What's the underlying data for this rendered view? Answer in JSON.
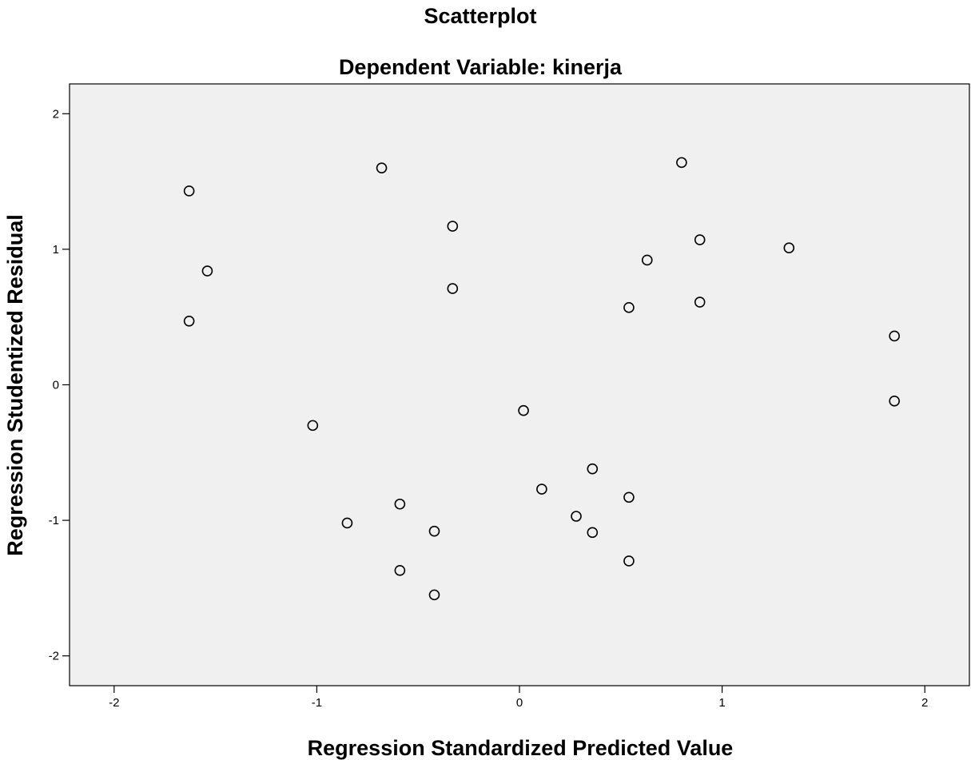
{
  "chart_data": {
    "type": "scatter",
    "title": "Scatterplot",
    "subtitle": "Dependent Variable: kinerja",
    "xlabel": "Regression Standardized Predicted Value",
    "ylabel": "Regression Studentized Residual",
    "xlim": [
      -2.22,
      2.22
    ],
    "ylim": [
      -2.22,
      2.22
    ],
    "x_ticks": [
      -2,
      -1,
      0,
      1,
      2
    ],
    "y_ticks": [
      -2,
      -1,
      0,
      1,
      2
    ],
    "x_tick_labels": [
      "-2",
      "-1",
      "0",
      "1",
      "2"
    ],
    "y_tick_labels": [
      "-2",
      "-1",
      "0",
      "1",
      "2"
    ],
    "grid": false,
    "series": [
      {
        "marker": "hollow-circle",
        "color": "#000000",
        "points": [
          {
            "x": -1.63,
            "y": 1.43
          },
          {
            "x": -1.54,
            "y": 0.84
          },
          {
            "x": -1.63,
            "y": 0.47
          },
          {
            "x": -0.68,
            "y": 1.6
          },
          {
            "x": -0.33,
            "y": 1.17
          },
          {
            "x": -0.33,
            "y": 0.71
          },
          {
            "x": -1.02,
            "y": -0.3
          },
          {
            "x": -0.85,
            "y": -1.02
          },
          {
            "x": -0.59,
            "y": -0.88
          },
          {
            "x": -0.42,
            "y": -1.08
          },
          {
            "x": -0.59,
            "y": -1.37
          },
          {
            "x": -0.42,
            "y": -1.55
          },
          {
            "x": 0.02,
            "y": -0.19
          },
          {
            "x": 0.11,
            "y": -0.77
          },
          {
            "x": 0.28,
            "y": -0.97
          },
          {
            "x": 0.36,
            "y": -0.62
          },
          {
            "x": 0.36,
            "y": -1.09
          },
          {
            "x": 0.54,
            "y": -0.83
          },
          {
            "x": 0.54,
            "y": -1.3
          },
          {
            "x": 0.54,
            "y": 0.57
          },
          {
            "x": 0.63,
            "y": 0.92
          },
          {
            "x": 0.8,
            "y": 1.64
          },
          {
            "x": 0.89,
            "y": 1.07
          },
          {
            "x": 0.89,
            "y": 0.61
          },
          {
            "x": 1.33,
            "y": 1.01
          },
          {
            "x": 1.85,
            "y": 0.36
          },
          {
            "x": 1.85,
            "y": -0.12
          }
        ]
      }
    ]
  }
}
